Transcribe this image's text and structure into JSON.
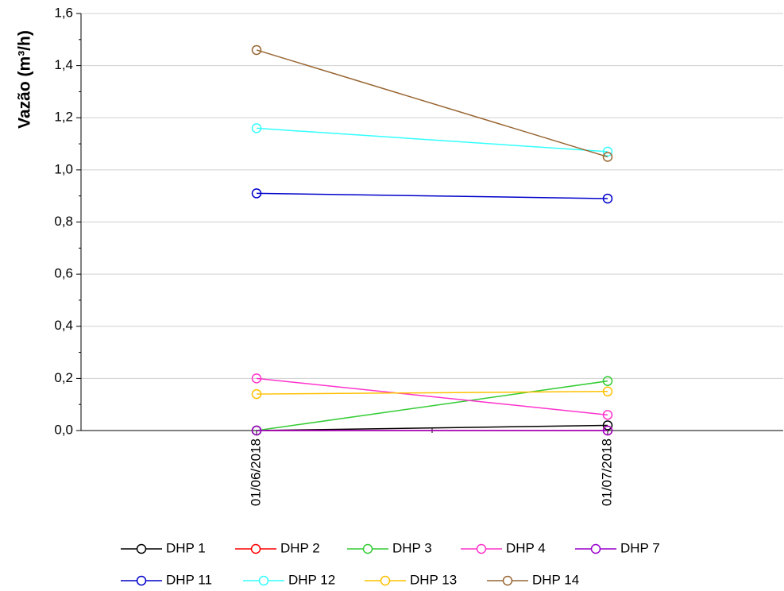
{
  "chart_data": {
    "type": "line",
    "y_label": "Vazão (m³/h)",
    "categories": [
      "01/06/2018",
      "01/07/2018"
    ],
    "series": [
      {
        "name": "DHP 1",
        "color": "#000000",
        "values": [
          0,
          0.02
        ]
      },
      {
        "name": "DHP 2",
        "color": "#ff0000",
        "values": [
          0,
          0
        ]
      },
      {
        "name": "DHP 3",
        "color": "#33cc33",
        "values": [
          0,
          0.19
        ]
      },
      {
        "name": "DHP 4",
        "color": "#ff33cc",
        "values": [
          0.2,
          0.06
        ]
      },
      {
        "name": "DHP 7",
        "color": "#9900cc",
        "values": [
          0,
          0
        ]
      },
      {
        "name": "DHP 11",
        "color": "#0000cc",
        "values": [
          0.91,
          0.89
        ]
      },
      {
        "name": "DHP 12",
        "color": "#33ffff",
        "values": [
          1.16,
          1.07
        ]
      },
      {
        "name": "DHP 13",
        "color": "#ffc000",
        "values": [
          0.14,
          0.15
        ]
      },
      {
        "name": "DHP 14",
        "color": "#996633",
        "values": [
          1.46,
          1.05
        ]
      }
    ],
    "ylim": [
      0,
      1.6
    ],
    "yticks": [
      {
        "value": 0,
        "label": "0,0"
      },
      {
        "value": 0.2,
        "label": "0,2"
      },
      {
        "value": 0.4,
        "label": "0,4"
      },
      {
        "value": 0.6,
        "label": "0,6"
      },
      {
        "value": 0.8,
        "label": "0,8"
      },
      {
        "value": 1.0,
        "label": "1,0"
      },
      {
        "value": 1.2,
        "label": "1,2"
      },
      {
        "value": 1.4,
        "label": "1,4"
      },
      {
        "value": 1.6,
        "label": "1,6"
      }
    ],
    "grid": true
  }
}
